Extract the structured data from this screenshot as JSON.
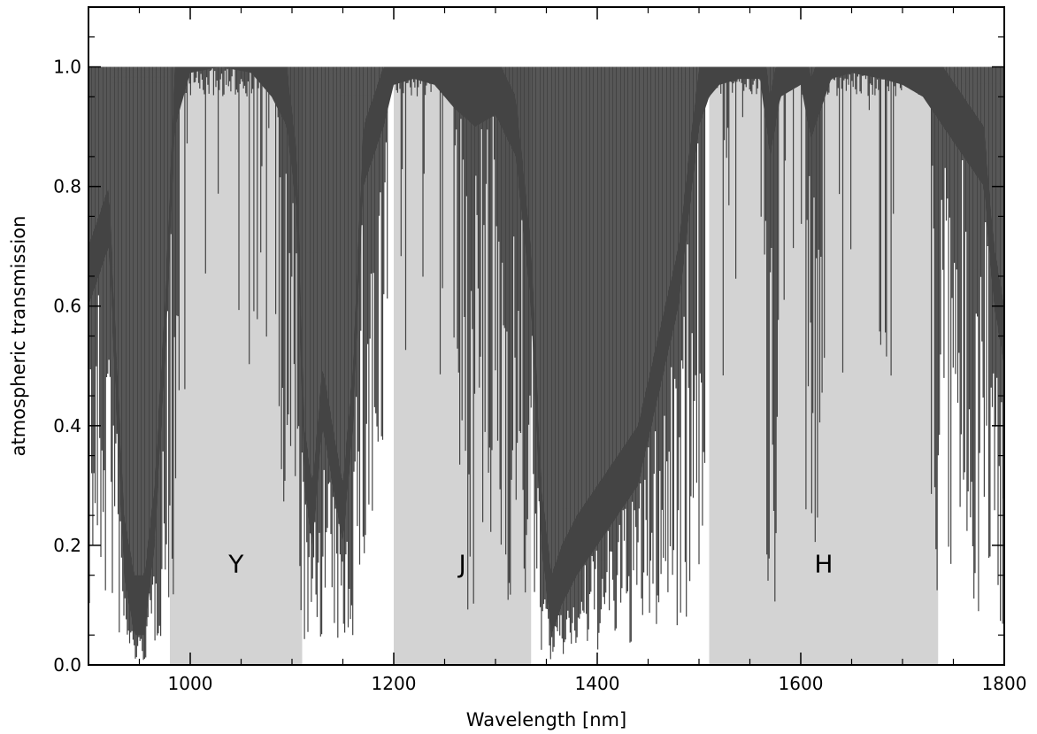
{
  "chart_data": {
    "type": "area",
    "title": "",
    "xlabel": "Wavelength [nm]",
    "ylabel": "atmospheric transmission",
    "xlim": [
      900,
      1800
    ],
    "ylim": [
      0.0,
      1.1
    ],
    "x_ticks": [
      1000,
      1200,
      1400,
      1600,
      1800
    ],
    "x_tick_labels": [
      "1000",
      "1200",
      "1400",
      "1600",
      "1800"
    ],
    "y_ticks": [
      0.0,
      0.2,
      0.4,
      0.6,
      0.8,
      1.0
    ],
    "y_tick_labels": [
      "0.0",
      "0.2",
      "0.4",
      "0.6",
      "0.8",
      "1.0"
    ],
    "grid": false,
    "bands": [
      {
        "label": "Y",
        "x_start": 980,
        "x_end": 1110
      },
      {
        "label": "J",
        "x_start": 1200,
        "x_end": 1335
      },
      {
        "label": "H",
        "x_start": 1510,
        "x_end": 1735
      }
    ],
    "series": [
      {
        "x": [
          900,
          920,
          935,
          945,
          955,
          965,
          975,
          985,
          1000,
          1030,
          1060,
          1080,
          1095,
          1105,
          1112,
          1120,
          1130,
          1140,
          1150,
          1160,
          1170,
          1180,
          1190,
          1200,
          1220,
          1240,
          1260,
          1280,
          1300,
          1320,
          1335,
          1345,
          1355,
          1365,
          1380,
          1400,
          1420,
          1440,
          1460,
          1480,
          1490,
          1500,
          1510,
          1520,
          1540,
          1560,
          1570,
          1580,
          1600,
          1610,
          1630,
          1650,
          1680,
          1700,
          1720,
          1740,
          1760,
          1780,
          1790,
          1800
        ],
        "values": [
          0.6,
          0.7,
          0.15,
          0.05,
          0.05,
          0.2,
          0.5,
          0.9,
          0.99,
          1.0,
          0.99,
          0.95,
          0.9,
          0.75,
          0.3,
          0.2,
          0.4,
          0.3,
          0.2,
          0.4,
          0.8,
          0.85,
          0.9,
          0.97,
          0.98,
          0.97,
          0.93,
          0.9,
          0.92,
          0.85,
          0.6,
          0.2,
          0.05,
          0.1,
          0.15,
          0.2,
          0.25,
          0.3,
          0.45,
          0.6,
          0.75,
          0.9,
          0.95,
          0.97,
          0.98,
          0.98,
          0.85,
          0.95,
          0.97,
          0.88,
          0.98,
          0.99,
          0.98,
          0.97,
          0.95,
          0.9,
          0.85,
          0.8,
          0.6,
          0.5
        ],
        "color": "#444444"
      }
    ],
    "band_color": "#d3d3d3"
  }
}
